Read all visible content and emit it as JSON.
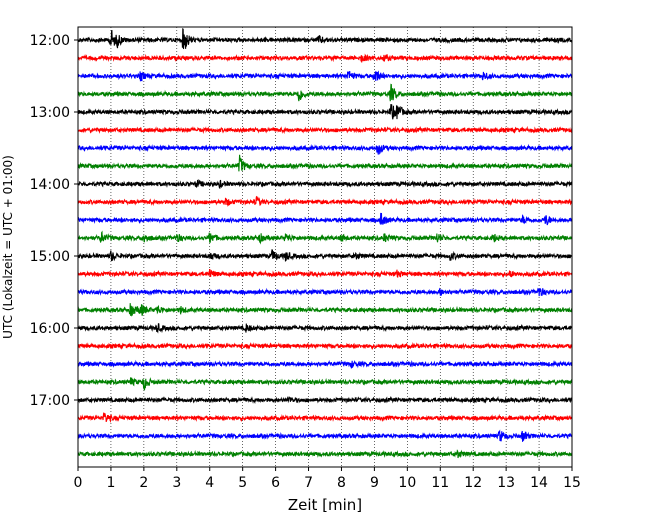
{
  "chart_data": {
    "type": "line",
    "title": "",
    "xlabel": "Zeit  [min]",
    "ylabel": "UTC (Lokalzeit = UTC + 01:00)",
    "xlim": [
      0,
      15
    ],
    "x_ticks": [
      "0",
      "1",
      "2",
      "3",
      "4",
      "5",
      "6",
      "7",
      "8",
      "9",
      "10",
      "11",
      "12",
      "13",
      "14",
      "15"
    ],
    "y_ticks": [
      "12:00",
      "13:00",
      "14:00",
      "15:00",
      "16:00",
      "17:00"
    ],
    "grid": "vertical dotted at every minute",
    "row_interval_minutes": 15,
    "start_time": "12:00",
    "colors": [
      "#000000",
      "#ff0000",
      "#0000ff",
      "#008000"
    ],
    "series": [
      {
        "start": "12:00",
        "events": [
          [
            1.0,
            1.0
          ],
          [
            1.2,
            0.4
          ],
          [
            3.2,
            1.3
          ],
          [
            7.3,
            0.35
          ]
        ]
      },
      {
        "start": "12:15",
        "events": [
          [
            8.6,
            0.35
          ],
          [
            9.3,
            0.3
          ]
        ]
      },
      {
        "start": "12:30",
        "events": [
          [
            1.9,
            0.35
          ],
          [
            8.2,
            0.5
          ],
          [
            9.0,
            0.8
          ],
          [
            12.3,
            0.35
          ]
        ]
      },
      {
        "start": "12:45",
        "events": [
          [
            6.7,
            0.75
          ],
          [
            9.5,
            0.85
          ]
        ]
      },
      {
        "start": "13:00",
        "events": [
          [
            9.5,
            0.8
          ],
          [
            9.7,
            0.6
          ]
        ]
      },
      {
        "start": "13:15",
        "events": []
      },
      {
        "start": "13:30",
        "events": [
          [
            9.1,
            0.6
          ]
        ]
      },
      {
        "start": "13:45",
        "events": [
          [
            4.9,
            0.9
          ]
        ]
      },
      {
        "start": "14:00",
        "events": [
          [
            3.6,
            0.3
          ],
          [
            4.3,
            0.25
          ]
        ]
      },
      {
        "start": "14:15",
        "events": [
          [
            5.4,
            0.45
          ],
          [
            4.5,
            0.3
          ]
        ]
      },
      {
        "start": "14:30",
        "events": [
          [
            9.2,
            0.6
          ],
          [
            14.2,
            0.5
          ],
          [
            13.5,
            0.3
          ]
        ]
      },
      {
        "start": "14:45",
        "events": [
          [
            0.7,
            0.5
          ],
          [
            2.0,
            0.4
          ],
          [
            3.0,
            0.35
          ],
          [
            4.0,
            0.5
          ],
          [
            5.5,
            0.4
          ],
          [
            6.3,
            0.35
          ],
          [
            8.0,
            0.3
          ],
          [
            9.3,
            0.35
          ],
          [
            10.9,
            0.4
          ],
          [
            12.6,
            0.35
          ]
        ]
      },
      {
        "start": "15:00",
        "events": [
          [
            1.0,
            0.45
          ],
          [
            4.0,
            0.35
          ],
          [
            5.9,
            0.5
          ],
          [
            6.3,
            0.4
          ],
          [
            8.4,
            0.3
          ],
          [
            11.3,
            0.35
          ]
        ]
      },
      {
        "start": "15:15",
        "events": [
          [
            4.0,
            0.4
          ],
          [
            9.7,
            0.3
          ],
          [
            13.1,
            0.25
          ]
        ]
      },
      {
        "start": "15:30",
        "events": [
          [
            14.0,
            0.45
          ],
          [
            11.0,
            0.25
          ]
        ]
      },
      {
        "start": "15:45",
        "events": [
          [
            1.6,
            0.6
          ],
          [
            1.9,
            0.55
          ],
          [
            2.4,
            0.35
          ],
          [
            3.1,
            0.3
          ]
        ]
      },
      {
        "start": "16:00",
        "events": [
          [
            2.4,
            0.35
          ],
          [
            5.1,
            0.3
          ]
        ]
      },
      {
        "start": "16:15",
        "events": []
      },
      {
        "start": "16:30",
        "events": [
          [
            8.3,
            0.25
          ]
        ]
      },
      {
        "start": "16:45",
        "events": [
          [
            2.0,
            0.65
          ],
          [
            1.6,
            0.3
          ]
        ]
      },
      {
        "start": "17:00",
        "events": [
          [
            6.4,
            0.25
          ]
        ]
      },
      {
        "start": "17:15",
        "events": [
          [
            0.8,
            0.5
          ]
        ]
      },
      {
        "start": "17:30",
        "events": [
          [
            12.8,
            0.55
          ],
          [
            13.5,
            0.45
          ]
        ]
      },
      {
        "start": "17:45",
        "events": [
          [
            11.5,
            0.35
          ]
        ]
      }
    ]
  }
}
